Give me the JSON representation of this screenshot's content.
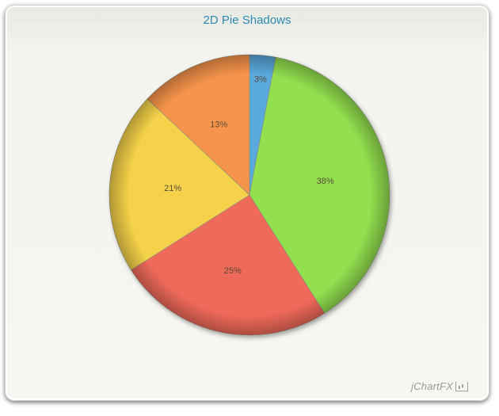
{
  "chart": {
    "title": "2D Pie Shadows",
    "watermark": "jChartFX"
  },
  "chart_data": {
    "type": "pie",
    "title": "2D Pie Shadows",
    "start_angle_deg": 0,
    "direction": "clockwise",
    "slices": [
      {
        "label": "3%",
        "value": 3,
        "color": "#5aa9dc"
      },
      {
        "label": "38%",
        "value": 38,
        "color": "#93e04f"
      },
      {
        "label": "25%",
        "value": 25,
        "color": "#f06a5a"
      },
      {
        "label": "21%",
        "value": 21,
        "color": "#f5d24a"
      },
      {
        "label": "13%",
        "value": 13,
        "color": "#f7944c"
      }
    ],
    "legend": "none"
  }
}
